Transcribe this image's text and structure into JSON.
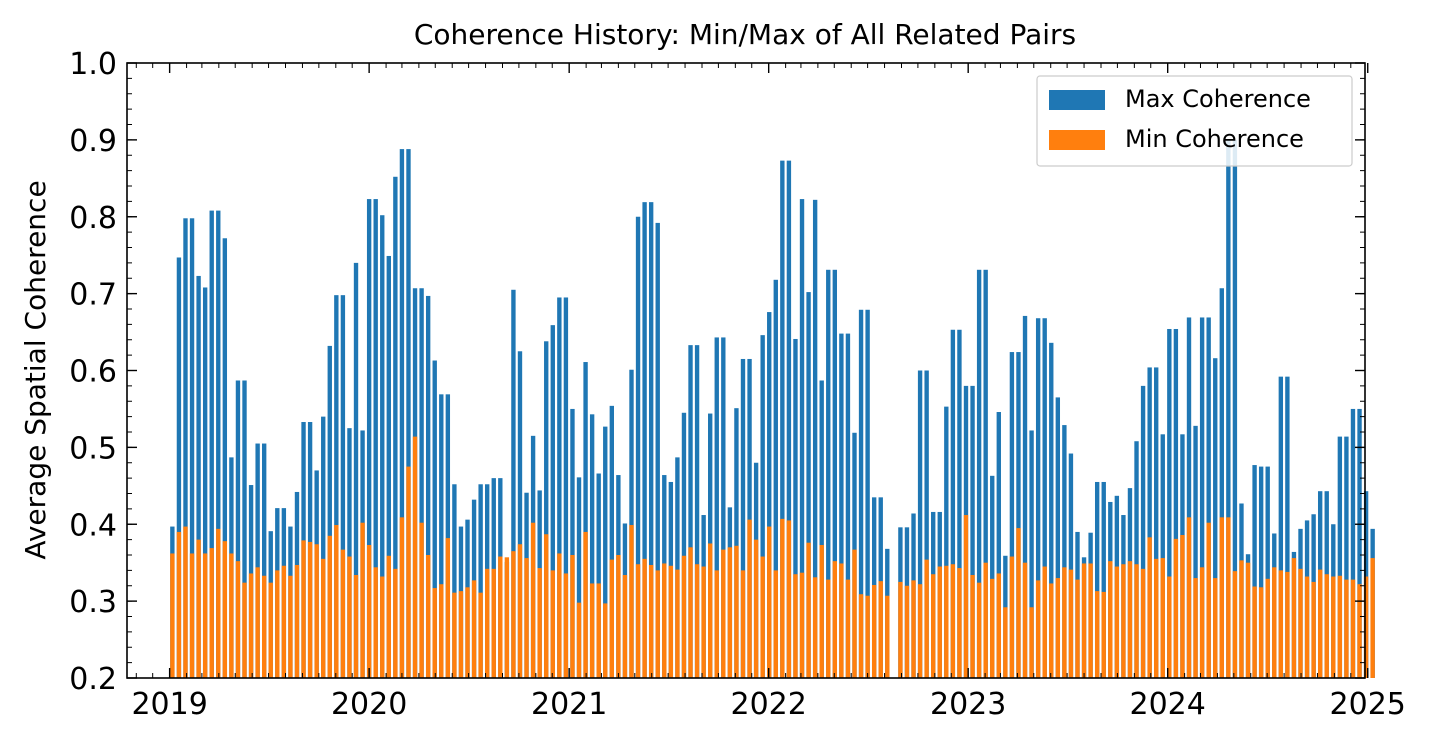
{
  "chart_data": {
    "type": "bar",
    "title": "Coherence History: Min/Max of All Related Pairs",
    "xlabel": "",
    "ylabel": "Average Spatial Coherence",
    "xlim": [
      "2018-10-15",
      "2024-12-27"
    ],
    "ylim": [
      0.2,
      1.0
    ],
    "xticks": [
      "2019",
      "2020",
      "2021",
      "2022",
      "2023",
      "2024",
      "2025"
    ],
    "yticks": [
      "0.2",
      "0.3",
      "0.4",
      "0.5",
      "0.6",
      "0.7",
      "0.8",
      "0.9",
      "1.0"
    ],
    "legend_position": "top-right",
    "grid": false,
    "bar_width_days": 8,
    "start_date": "2019-01-06",
    "step_days": 12,
    "gaps": [
      110
    ],
    "series": [
      {
        "name": "Max Coherence",
        "color": "#1f77b4",
        "values": [
          0.397,
          0.747,
          0.798,
          0.798,
          0.723,
          0.708,
          0.808,
          0.808,
          0.772,
          0.487,
          0.587,
          0.587,
          0.451,
          0.505,
          0.505,
          0.391,
          0.421,
          0.421,
          0.397,
          0.442,
          0.533,
          0.533,
          0.47,
          0.54,
          0.632,
          0.698,
          0.698,
          0.525,
          0.74,
          0.522,
          0.823,
          0.823,
          0.802,
          0.749,
          0.852,
          0.888,
          0.888,
          0.707,
          0.707,
          0.697,
          0.613,
          0.569,
          0.569,
          0.452,
          0.397,
          0.406,
          0.432,
          0.452,
          0.452,
          0.46,
          0.46,
          0.351,
          0.705,
          0.625,
          0.441,
          0.515,
          0.444,
          0.638,
          0.659,
          0.695,
          0.695,
          0.55,
          0.461,
          0.611,
          0.543,
          0.466,
          0.527,
          0.554,
          0.464,
          0.401,
          0.601,
          0.8,
          0.819,
          0.819,
          0.792,
          0.464,
          0.455,
          0.487,
          0.545,
          0.633,
          0.633,
          0.412,
          0.544,
          0.643,
          0.643,
          0.422,
          0.551,
          0.615,
          0.615,
          0.48,
          0.646,
          0.676,
          0.718,
          0.873,
          0.873,
          0.641,
          0.823,
          0.702,
          0.822,
          0.587,
          0.731,
          0.731,
          0.648,
          0.648,
          0.519,
          0.679,
          0.679,
          0.435,
          0.435,
          0.368,
          0.396,
          0.396,
          0.414,
          0.6,
          0.6,
          0.416,
          0.416,
          0.553,
          0.653,
          0.653,
          0.58,
          0.58,
          0.731,
          0.731,
          0.463,
          0.546,
          0.359,
          0.624,
          0.624,
          0.671,
          0.522,
          0.668,
          0.668,
          0.636,
          0.565,
          0.529,
          0.492,
          0.39,
          0.357,
          0.389,
          0.455,
          0.455,
          0.429,
          0.437,
          0.412,
          0.447,
          0.508,
          0.58,
          0.604,
          0.604,
          0.517,
          0.654,
          0.654,
          0.517,
          0.669,
          0.528,
          0.669,
          0.669,
          0.616,
          0.707,
          0.9,
          0.9,
          0.427,
          0.361,
          0.477,
          0.475,
          0.475,
          0.388,
          0.592,
          0.592,
          0.364,
          0.394,
          0.405,
          0.413,
          0.443,
          0.443,
          0.4,
          0.514,
          0.514,
          0.55,
          0.55,
          0.443,
          0.394
        ]
      },
      {
        "name": "Min Coherence",
        "color": "#ff7f0e",
        "values": [
          0.362,
          0.39,
          0.397,
          0.362,
          0.38,
          0.362,
          0.369,
          0.394,
          0.378,
          0.362,
          0.352,
          0.324,
          0.336,
          0.344,
          0.333,
          0.324,
          0.34,
          0.346,
          0.333,
          0.347,
          0.379,
          0.377,
          0.374,
          0.355,
          0.385,
          0.399,
          0.367,
          0.358,
          0.334,
          0.402,
          0.373,
          0.344,
          0.332,
          0.359,
          0.342,
          0.409,
          0.475,
          0.514,
          0.402,
          0.36,
          0.317,
          0.322,
          0.382,
          0.311,
          0.313,
          0.318,
          0.327,
          0.311,
          0.342,
          0.342,
          0.358,
          0.357,
          0.365,
          0.374,
          0.356,
          0.402,
          0.343,
          0.387,
          0.34,
          0.362,
          0.336,
          0.36,
          0.298,
          0.39,
          0.323,
          0.323,
          0.297,
          0.354,
          0.36,
          0.334,
          0.399,
          0.348,
          0.355,
          0.347,
          0.34,
          0.349,
          0.346,
          0.341,
          0.359,
          0.37,
          0.348,
          0.345,
          0.375,
          0.34,
          0.367,
          0.37,
          0.372,
          0.34,
          0.406,
          0.38,
          0.358,
          0.397,
          0.34,
          0.407,
          0.405,
          0.335,
          0.337,
          0.376,
          0.331,
          0.373,
          0.328,
          0.352,
          0.349,
          0.328,
          0.367,
          0.309,
          0.307,
          0.321,
          0.326,
          0.307,
          0.325,
          0.32,
          0.327,
          0.322,
          0.354,
          0.335,
          0.345,
          0.346,
          0.348,
          0.343,
          0.412,
          0.334,
          0.324,
          0.35,
          0.329,
          0.336,
          0.292,
          0.358,
          0.395,
          0.35,
          0.292,
          0.327,
          0.345,
          0.323,
          0.33,
          0.344,
          0.341,
          0.328,
          0.349,
          0.349,
          0.313,
          0.312,
          0.352,
          0.345,
          0.348,
          0.352,
          0.348,
          0.342,
          0.383,
          0.355,
          0.356,
          0.332,
          0.381,
          0.386,
          0.409,
          0.33,
          0.344,
          0.402,
          0.33,
          0.409,
          0.409,
          0.339,
          0.353,
          0.35,
          0.319,
          0.318,
          0.329,
          0.344,
          0.34,
          0.338,
          0.356,
          0.342,
          0.332,
          0.325,
          0.341,
          0.335,
          0.332,
          0.333,
          0.328,
          0.328,
          0.322,
          0.332,
          0.356,
          0.326,
          0.324,
          0.36
        ]
      }
    ]
  }
}
